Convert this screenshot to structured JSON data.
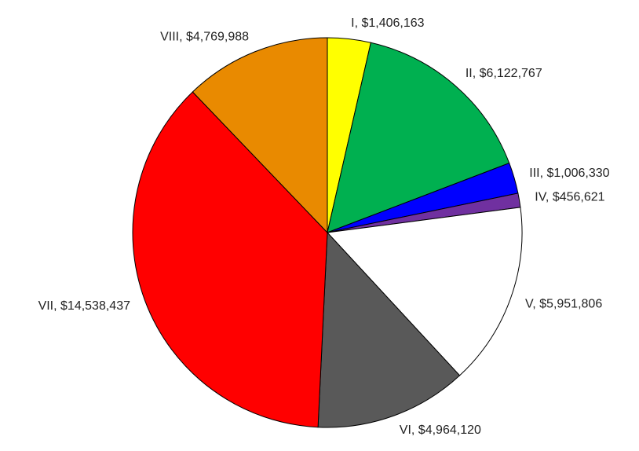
{
  "chart_data": {
    "type": "pie",
    "values": [
      1406163,
      6122767,
      1006330,
      456621,
      5951806,
      4964120,
      14538437,
      4769988
    ],
    "value_labels": [
      "I, $1,406,163",
      "II, $6,122,767",
      "III, $1,006,330",
      "IV, $456,621",
      "V, $5,951,806",
      "VI, $4,964,120",
      "VII, $14,538,437",
      "VIII, $4,769,988"
    ],
    "colors": [
      "#ffff00",
      "#00b050",
      "#0000ff",
      "#7030a0",
      "#ffffff",
      "#595959",
      "#ff0000",
      "#e98a00"
    ]
  }
}
